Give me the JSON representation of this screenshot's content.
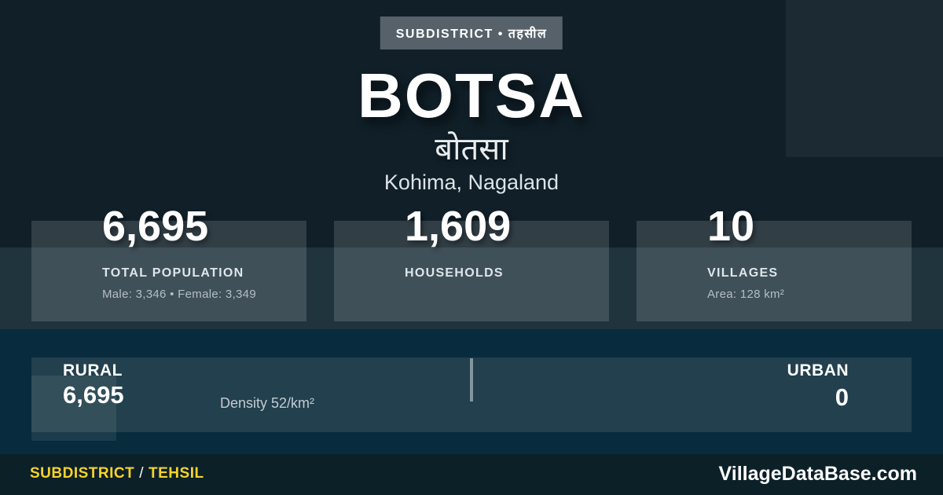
{
  "badge": {
    "label": "SUBDISTRICT • तहसील"
  },
  "title": {
    "name": "BOTSA",
    "native_name": "बोतसा",
    "location": "Kohima, Nagaland"
  },
  "stats": [
    {
      "value": "6,695",
      "label": "TOTAL POPULATION",
      "detail": "Male: 3,346 • Female: 3,349"
    },
    {
      "value": "1,609",
      "label": "HOUSEHOLDS",
      "detail": ""
    },
    {
      "value": "10",
      "label": "VILLAGES",
      "detail": "Area: 128 km²"
    }
  ],
  "distribution": {
    "rural_label": "RURAL",
    "rural_value": "6,695",
    "density": "Density 52/km²",
    "urban_label": "URBAN",
    "urban_value": "0"
  },
  "footer": {
    "left_primary": "SUBDISTRICT",
    "left_separator": "/",
    "left_secondary": "TEHSIL",
    "site": "VillageDataBase.com"
  },
  "colors": {
    "background": "#101f28",
    "band": "#20343e",
    "rural_band": "#082c3d",
    "accent_yellow": "#f7d32b",
    "badge_gray": "#57616a"
  }
}
